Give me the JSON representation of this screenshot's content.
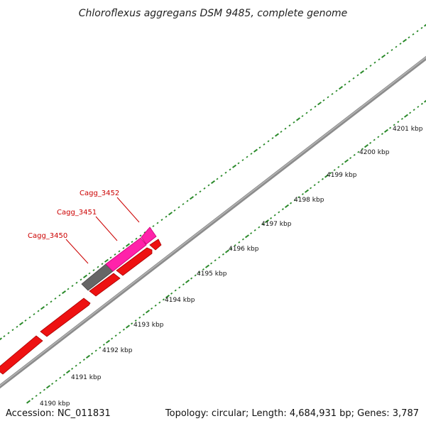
{
  "title": "Chloroflexus aggregans DSM 9485, complete genome",
  "footer": {
    "accession": "Accession: NC_011831",
    "summary": "Topology: circular; Length: 4,684,931 bp; Genes: 3,787"
  },
  "ticks": [
    "4190 kbp",
    "4191 kbp",
    "4192 kbp",
    "4193 kbp",
    "4194 kbp",
    "4195 kbp",
    "4196 kbp",
    "4197 kbp",
    "4198 kbp",
    "4199 kbp",
    "4200 kbp",
    "4201 kbp"
  ],
  "gene_labels": [
    "Cagg_3450",
    "Cagg_3451",
    "Cagg_3452"
  ],
  "colors": {
    "backbone": "#8c8c8c",
    "cds": "#ee1111",
    "selected_cds": "#ff22aa",
    "pseudo_or_rna": "#666666",
    "dots": "#2a8a2a",
    "label": "#cc0000"
  }
}
